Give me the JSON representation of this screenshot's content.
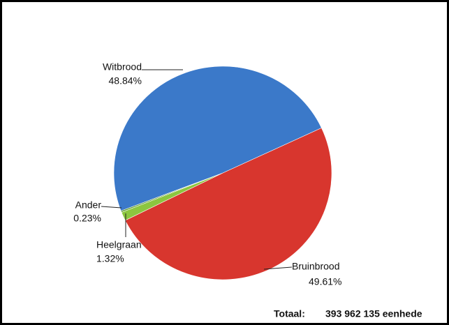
{
  "chart_data": {
    "type": "pie",
    "categories": [
      "Bruinbrood",
      "Heelgraan",
      "Ander",
      "Witbrood"
    ],
    "values": [
      49.61,
      1.32,
      0.23,
      48.84
    ],
    "value_labels": [
      "49.61%",
      "1.32%",
      "0.23%",
      "48.84%"
    ],
    "colors": [
      "#d8362e",
      "#8cc63f",
      "#5f9a2c",
      "#3b79c9"
    ],
    "annotations": [
      "Totaal:",
      "393 962 135 eenhede"
    ]
  }
}
